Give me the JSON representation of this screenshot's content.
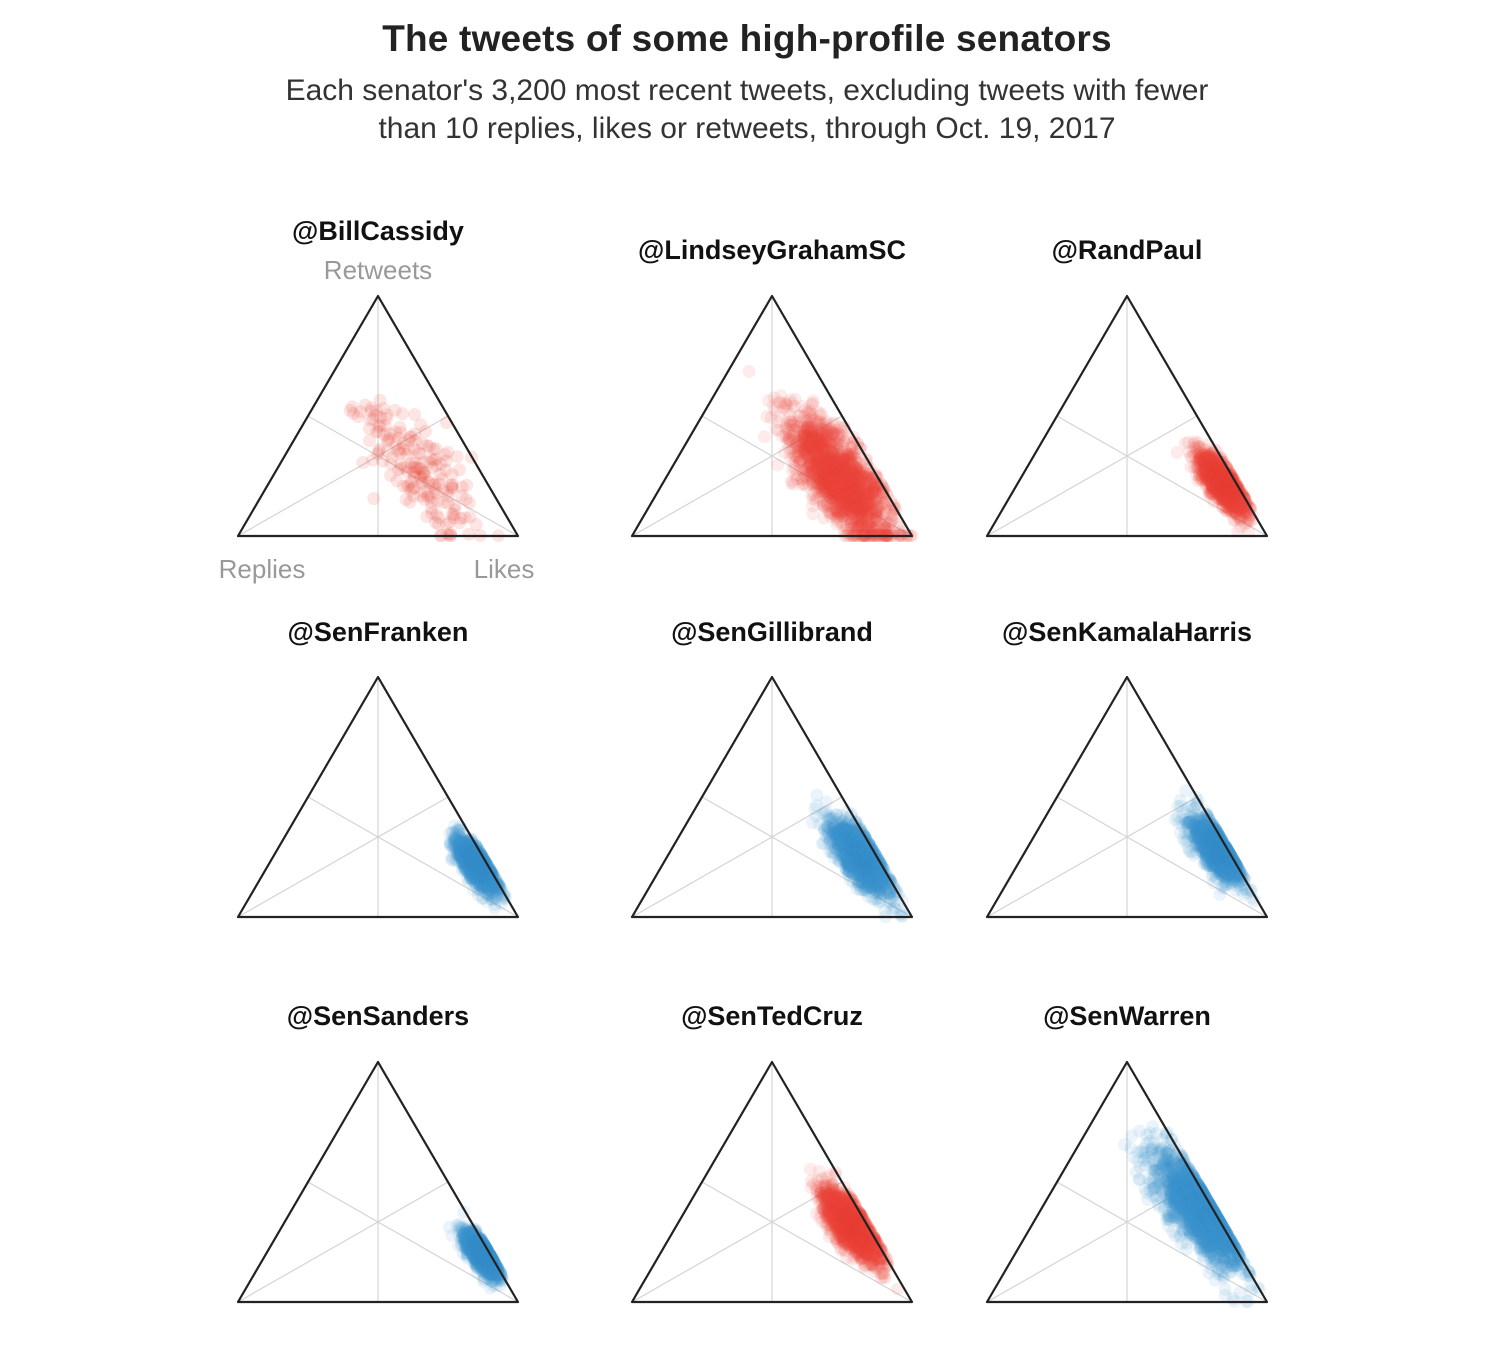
{
  "chart_data": {
    "type": "scatter",
    "subtype": "ternary",
    "title": "The tweets of some high-profile senators",
    "subtitle": [
      "Each senator's 3,200 most recent tweets, excluding tweets with fewer",
      "than 10 replies, likes or retweets, through Oct. 19, 2017"
    ],
    "axes": {
      "top": "Retweets",
      "left": "Replies",
      "right": "Likes"
    },
    "colors": {
      "republican": "#e8493a",
      "democrat": "#3d8fcf",
      "frame": "#222222",
      "grid": "#d4d4d4"
    },
    "panels": [
      {
        "name": "@BillCassidy",
        "party": "republican",
        "points": 180,
        "center": {
          "replies": 0.22,
          "retweets": 0.28,
          "likes": 0.5
        },
        "spread": 0.13
      },
      {
        "name": "@LindseyGrahamSC",
        "party": "republican",
        "points": 1600,
        "center": {
          "replies": 0.14,
          "retweets": 0.24,
          "likes": 0.62
        },
        "spread": 0.1
      },
      {
        "name": "@RandPaul",
        "party": "republican",
        "points": 1400,
        "center": {
          "replies": 0.05,
          "retweets": 0.22,
          "likes": 0.73
        },
        "spread": 0.045
      },
      {
        "name": "@SenFranken",
        "party": "democrat",
        "points": 1300,
        "center": {
          "replies": 0.04,
          "retweets": 0.22,
          "likes": 0.74
        },
        "spread": 0.04
      },
      {
        "name": "@SenGillibrand",
        "party": "democrat",
        "points": 1300,
        "center": {
          "replies": 0.06,
          "retweets": 0.25,
          "likes": 0.69
        },
        "spread": 0.06
      },
      {
        "name": "@SenKamalaHarris",
        "party": "democrat",
        "points": 1300,
        "center": {
          "replies": 0.04,
          "retweets": 0.28,
          "likes": 0.68
        },
        "spread": 0.05
      },
      {
        "name": "@SenSanders",
        "party": "democrat",
        "points": 1300,
        "center": {
          "replies": 0.03,
          "retweets": 0.2,
          "likes": 0.77
        },
        "spread": 0.035
      },
      {
        "name": "@SenTedCruz",
        "party": "republican",
        "points": 1500,
        "center": {
          "replies": 0.06,
          "retweets": 0.32,
          "likes": 0.62
        },
        "spread": 0.055
      },
      {
        "name": "@SenWarren",
        "party": "democrat",
        "points": 1600,
        "center": {
          "replies": 0.05,
          "retweets": 0.38,
          "likes": 0.57
        },
        "spread": 0.09
      }
    ]
  }
}
